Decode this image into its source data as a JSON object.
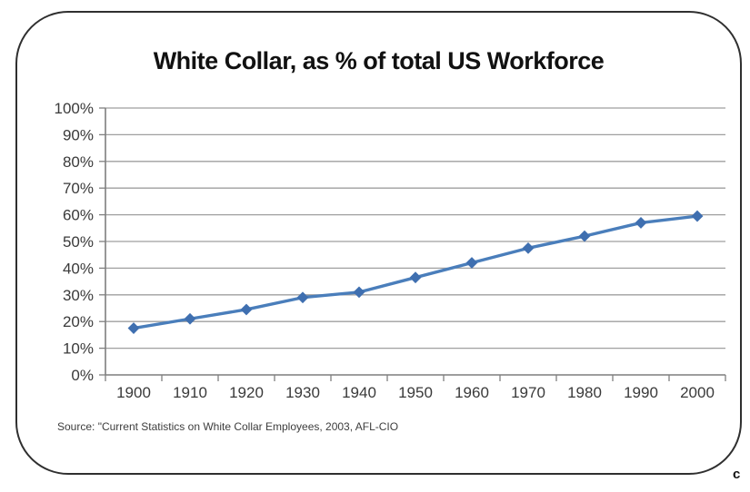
{
  "chart_data": {
    "type": "line",
    "title": "White Collar, as % of total US Workforce",
    "categories": [
      "1900",
      "1910",
      "1920",
      "1930",
      "1940",
      "1950",
      "1960",
      "1970",
      "1980",
      "1990",
      "2000"
    ],
    "values": [
      17.5,
      21,
      24.5,
      29,
      31,
      36.5,
      42,
      47.5,
      52,
      57,
      59.5
    ],
    "xlabel": "",
    "ylabel": "",
    "ylim": [
      0,
      100
    ],
    "ytick_step": 10,
    "ytick_suffix": "%",
    "grid": "horizontal-only",
    "legend": "none",
    "marker": "diamond"
  },
  "colors": {
    "line": "#4a7ebb",
    "marker": "#3f6fb0",
    "gridline": "#9f9f9f",
    "axis": "#7f7f7f",
    "tick_text": "#3a3a3a",
    "title_text": "#111111",
    "frame_border": "#2f2f2f",
    "background": "#ffffff"
  },
  "source_note": "Source: \"Current Statistics on White Collar Employees, 2003, AFL-CIO",
  "corner_mark": "c"
}
